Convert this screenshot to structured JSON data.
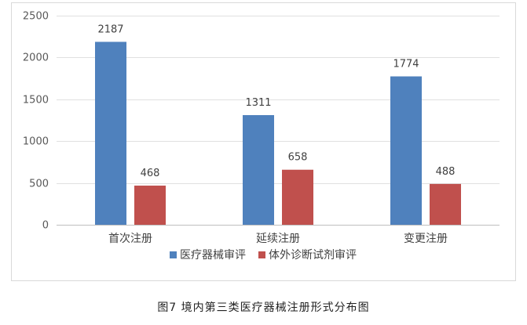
{
  "chart_data": {
    "type": "bar",
    "categories": [
      "首次注册",
      "延续注册",
      "变更注册"
    ],
    "series": [
      {
        "name": "医疗器械审评",
        "values": [
          2187,
          1311,
          1774
        ],
        "color": "#4f81bd"
      },
      {
        "name": "体外诊断试剂审评",
        "values": [
          468,
          658,
          488
        ],
        "color": "#c0504d"
      }
    ],
    "ylim": [
      0,
      2500
    ],
    "yticks": [
      0,
      500,
      1000,
      1500,
      2000,
      2500
    ],
    "grid": true,
    "legend": "bottom"
  },
  "caption": "图7 境内第三类医疗器械注册形式分布图"
}
